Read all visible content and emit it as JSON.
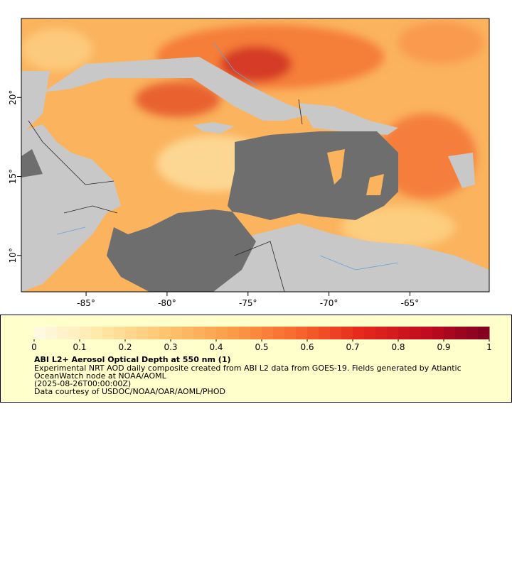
{
  "map": {
    "xlim": [
      -89,
      -60.1
    ],
    "ylim": [
      7.7,
      25
    ],
    "xticks": [
      {
        "value": -85,
        "label": "-85°"
      },
      {
        "value": -80,
        "label": "-80°"
      },
      {
        "value": -75,
        "label": "-75°"
      },
      {
        "value": -70,
        "label": "-70°"
      },
      {
        "value": -65,
        "label": "-65°"
      }
    ],
    "yticks": [
      {
        "value": 10,
        "label": "10°"
      },
      {
        "value": 15,
        "label": "15°"
      },
      {
        "value": 20,
        "label": "20°"
      }
    ]
  },
  "legend": {
    "lim": [
      0,
      1
    ],
    "ticks": [
      0,
      0.1,
      0.2,
      0.3,
      0.4,
      0.5,
      0.6,
      0.7,
      0.8,
      0.9,
      1
    ],
    "palette": [
      "#fffbe8",
      "#fee9a8",
      "#fdc570",
      "#fb9e4a",
      "#f86a2e",
      "#e62a1c",
      "#c20c1e",
      "#7e0022"
    ],
    "title": "ABI L2+ Aerosol Optical Depth at 550 nm (1)",
    "lines": [
      "Experimental NRT AOD daily composite created from ABI L2 data from GOES-19. Fields generated by Atlantic",
      "OceanWatch node at NOAA/AOML",
      "(2025-08-26T00:00:00Z)",
      "Data courtesy of USDOC/NOAA/OAR/AOML/PHOD"
    ]
  }
}
